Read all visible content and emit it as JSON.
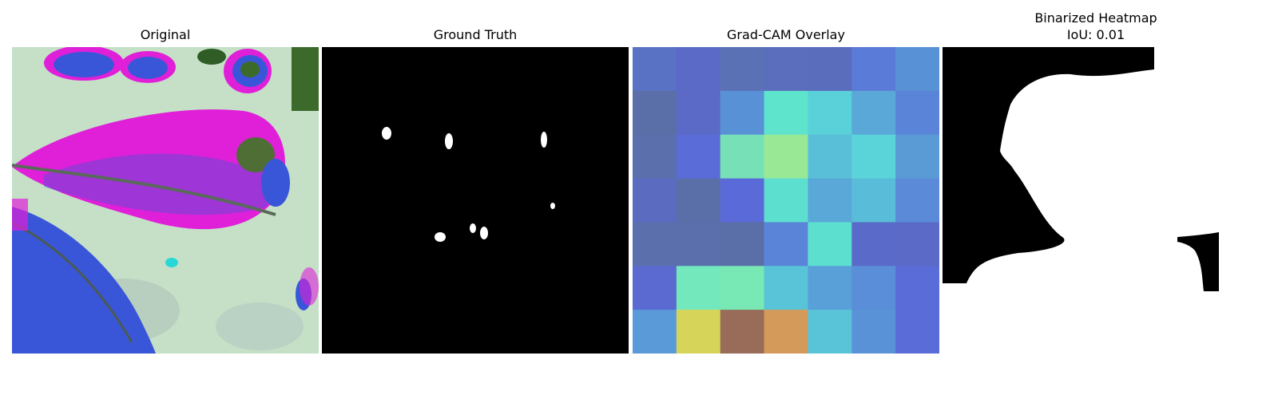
{
  "panels": [
    {
      "title": "Original"
    },
    {
      "title": "Ground Truth"
    },
    {
      "title": "Grad-CAM Overlay"
    },
    {
      "title": "Binarized Heatmap",
      "subtitle": "IoU: 0.01"
    }
  ],
  "gradcam_grid": [
    [
      "#5a72c4",
      "#5a6ac6",
      "#5b71b6",
      "#5a6ebd",
      "#5a6cbc",
      "#5a7bd8",
      "#5991d6"
    ],
    [
      "#5a6fa8",
      "#5a6ac6",
      "#5991d6",
      "#5ee3cc",
      "#5ad1d8",
      "#59a8d8",
      "#5a84d8"
    ],
    [
      "#5a6fac",
      "#5a6cd8",
      "#77e0b7",
      "#99e895",
      "#59bfd8",
      "#5ad4d8",
      "#5a9bd6"
    ],
    [
      "#5a6bc0",
      "#5a6fa8",
      "#5a6ad8",
      "#5ddfd0",
      "#59a8d8",
      "#59bcd8",
      "#5a8ad8"
    ],
    [
      "#5a6fac",
      "#5a6fac",
      "#5a6ea8",
      "#5a84d8",
      "#5ddfd0",
      "#5a6ac8",
      "#5a6ac6"
    ],
    [
      "#5a6ad0",
      "#72e8bc",
      "#78e8b4",
      "#59c4d8",
      "#599fd8",
      "#5a8ed8",
      "#5a6cd8"
    ],
    [
      "#5a9ad8",
      "#d6d55a",
      "#986c58",
      "#d49a5a",
      "#59c4d8",
      "#5a92d8",
      "#5a6cd8"
    ]
  ]
}
